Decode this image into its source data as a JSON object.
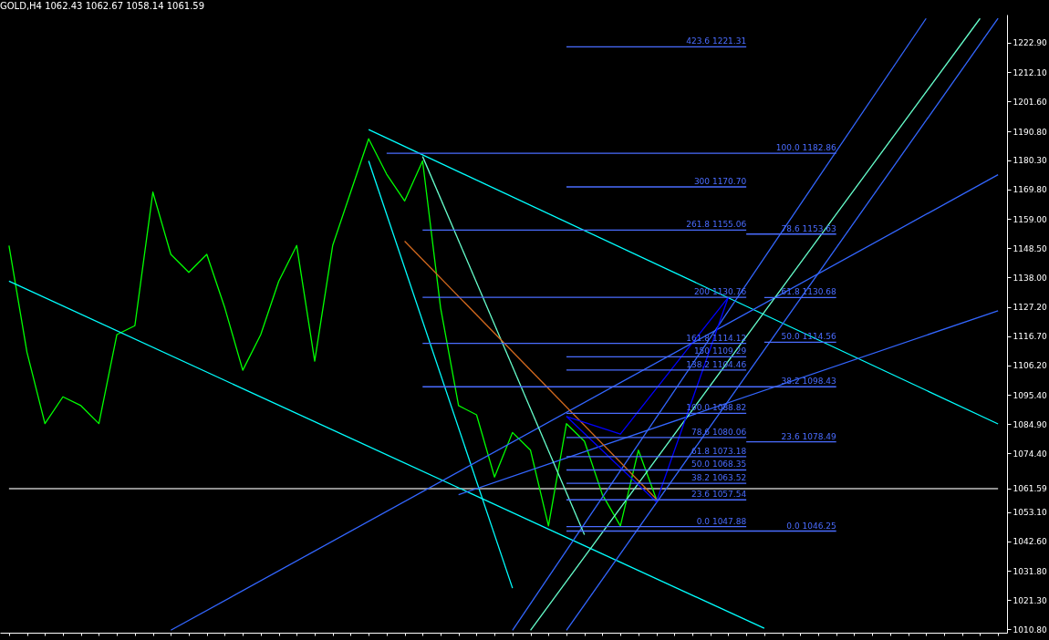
{
  "chart_data": {
    "type": "line",
    "title": "GOLD,H4  1062.43 1062.67 1058.14 1061.59",
    "categories": [
      null,
      null,
      null,
      null,
      null,
      null,
      null,
      null,
      null,
      null,
      null,
      null,
      null,
      null,
      null,
      null,
      null,
      null,
      null,
      null,
      null,
      null,
      null,
      null,
      null,
      null,
      null,
      null,
      null,
      null,
      null,
      null,
      null,
      null,
      null,
      null,
      null,
      null,
      null,
      null,
      null,
      null,
      null,
      null,
      null,
      null,
      null,
      null,
      null,
      null,
      null,
      null,
      null,
      null,
      null,
      null
    ],
    "ylim": [
      1009.5,
      1233
    ],
    "yticks": [
      {
        "value": 1010.8,
        "label": "1010.80"
      },
      {
        "value": 1021.3,
        "label": "1021.30"
      },
      {
        "value": 1031.8,
        "label": "1031.80"
      },
      {
        "value": 1042.6,
        "label": "1042.60"
      },
      {
        "value": 1053.1,
        "label": "1053.10"
      },
      {
        "value": 1061.59,
        "label": "1061.59"
      },
      {
        "value": 1074.4,
        "label": "1074.40"
      },
      {
        "value": 1084.9,
        "label": "1084.90"
      },
      {
        "value": 1095.4,
        "label": "1095.40"
      },
      {
        "value": 1106.2,
        "label": "1106.20"
      },
      {
        "value": 1116.7,
        "label": "1116.70"
      },
      {
        "value": 1127.2,
        "label": "1127.20"
      },
      {
        "value": 1138.0,
        "label": "1138.00"
      },
      {
        "value": 1148.5,
        "label": "1148.50"
      },
      {
        "value": 1159.0,
        "label": "1159.00"
      },
      {
        "value": 1169.8,
        "label": "1169.80"
      },
      {
        "value": 1180.3,
        "label": "1180.30"
      },
      {
        "value": 1190.8,
        "label": "1190.80"
      },
      {
        "value": 1201.6,
        "label": "1201.60"
      },
      {
        "value": 1212.1,
        "label": "1212.10"
      },
      {
        "value": 1222.9,
        "label": "1222.90"
      }
    ],
    "tick_labels": "y",
    "series": [
      {
        "color": "#c0c0c0",
        "values": [
          1061.59,
          1061.59,
          1061.59,
          1061.59,
          1061.59,
          1061.59,
          1061.59,
          1061.59,
          1061.59,
          1061.59,
          1061.59,
          1061.59,
          1061.59,
          1061.59,
          1061.59,
          1061.59,
          1061.59,
          1061.59,
          1061.59,
          1061.59,
          1061.59,
          1061.59,
          1061.59,
          1061.59,
          1061.59,
          1061.59,
          1061.59,
          1061.59,
          1061.59,
          1061.59,
          1061.59,
          1061.59,
          1061.59,
          1061.59,
          1061.59,
          1061.59,
          1061.59,
          1061.59,
          1061.59,
          1061.59,
          1061.59,
          1061.59,
          1061.59,
          1061.59,
          1061.59,
          1061.59,
          1061.59,
          1061.59,
          1061.59,
          1061.59,
          1061.59,
          1061.59,
          1061.59,
          1061.59,
          1061.59,
          1061.59
        ]
      },
      {
        "color": "#00ffff",
        "values": [
          null,
          null,
          null,
          null,
          null,
          null,
          null,
          null,
          null,
          null,
          null,
          null,
          null,
          null,
          null,
          null,
          null,
          null,
          null,
          null,
          1191.4,
          null,
          null,
          null,
          null,
          null,
          null,
          null,
          null,
          null,
          null,
          null,
          null,
          null,
          null,
          null,
          null,
          null,
          null,
          null,
          null,
          null,
          null,
          null,
          null,
          null,
          null,
          null,
          null,
          null,
          null,
          null,
          null,
          null,
          null,
          1085.0
        ]
      },
      {
        "color": "#00ff00",
        "values": [
          1149.5,
          1110.9,
          1085.1,
          1094.8,
          1091.6,
          1085.1,
          1117.3,
          1120.5,
          1168.8,
          1146.3,
          1139.8,
          1146.3,
          1127.0,
          1104.4,
          1117.3,
          1136.6,
          1149.5,
          1107.7,
          1149.5,
          1168.8,
          1188.1,
          1175.3,
          1165.6,
          1180.1,
          1127.0,
          1091.6,
          1088.3,
          1065.8,
          1081.9,
          1075.5,
          1048.1,
          1085.1,
          1078.7,
          1059.4,
          1048.1,
          1075.5,
          1057.8,
          null,
          null,
          null,
          null,
          null,
          null,
          null,
          null,
          null,
          null,
          null,
          null,
          null,
          null,
          null,
          null,
          null,
          null,
          null
        ]
      },
      {
        "color": "#00ffff",
        "values": [
          1136.6,
          null,
          null,
          null,
          null,
          null,
          null,
          null,
          null,
          null,
          null,
          null,
          null,
          null,
          null,
          null,
          null,
          null,
          null,
          null,
          null,
          null,
          null,
          null,
          null,
          null,
          null,
          null,
          null,
          null,
          null,
          null,
          null,
          null,
          null,
          null,
          null,
          null,
          null,
          null,
          null,
          null,
          1011.1,
          null,
          null,
          null,
          null,
          null,
          null,
          null,
          null,
          null,
          null,
          null,
          null,
          null
        ]
      },
      {
        "color": "#00ffff",
        "values": [
          null,
          null,
          null,
          null,
          null,
          null,
          null,
          null,
          null,
          null,
          null,
          null,
          null,
          null,
          null,
          null,
          null,
          null,
          null,
          null,
          1180.1,
          null,
          null,
          null,
          null,
          null,
          null,
          null,
          1025.6,
          null,
          null,
          null,
          null,
          null,
          null,
          null,
          null,
          null,
          null,
          null,
          null,
          null,
          null,
          null,
          null,
          null,
          null,
          null,
          null,
          null,
          null,
          null,
          null,
          null,
          null,
          null
        ]
      },
      {
        "color": "#3366ff",
        "values": [
          null,
          null,
          null,
          null,
          null,
          null,
          null,
          null,
          null,
          1010.4,
          null,
          null,
          null,
          null,
          null,
          null,
          null,
          null,
          null,
          null,
          null,
          null,
          null,
          null,
          null,
          null,
          null,
          null,
          null,
          null,
          null,
          null,
          null,
          null,
          null,
          null,
          null,
          null,
          null,
          null,
          null,
          null,
          null,
          null,
          null,
          null,
          null,
          null,
          null,
          null,
          null,
          null,
          null,
          null,
          null,
          1175.1
        ]
      },
      {
        "color": "#3366ff",
        "values": [
          null,
          null,
          null,
          null,
          null,
          null,
          null,
          null,
          null,
          null,
          null,
          null,
          null,
          null,
          null,
          null,
          null,
          null,
          null,
          null,
          null,
          null,
          null,
          null,
          null,
          1059.4,
          null,
          null,
          null,
          null,
          null,
          null,
          null,
          null,
          null,
          null,
          null,
          null,
          null,
          null,
          null,
          null,
          null,
          null,
          null,
          null,
          null,
          null,
          null,
          null,
          null,
          null,
          null,
          null,
          null,
          1125.9
        ]
      },
      {
        "color": "#3366ff",
        "values": [
          null,
          null,
          null,
          null,
          null,
          null,
          null,
          null,
          null,
          null,
          null,
          null,
          null,
          null,
          null,
          null,
          null,
          null,
          null,
          null,
          null,
          null,
          null,
          null,
          null,
          null,
          null,
          null,
          1010.4,
          null,
          null,
          null,
          null,
          null,
          null,
          null,
          null,
          null,
          null,
          null,
          null,
          null,
          null,
          null,
          null,
          null,
          null,
          null,
          null,
          null,
          null,
          1231.6,
          null,
          null,
          null,
          null
        ]
      },
      {
        "color": "#3366ff",
        "values": [
          null,
          null,
          null,
          null,
          null,
          null,
          null,
          null,
          null,
          null,
          null,
          null,
          null,
          null,
          null,
          null,
          null,
          null,
          null,
          null,
          null,
          null,
          null,
          null,
          null,
          null,
          null,
          null,
          null,
          null,
          null,
          1010.4,
          null,
          null,
          null,
          null,
          null,
          null,
          null,
          null,
          null,
          null,
          null,
          null,
          null,
          null,
          null,
          null,
          null,
          null,
          null,
          null,
          null,
          null,
          null,
          1231.6
        ]
      },
      {
        "color": "#66ffcc",
        "values": [
          null,
          null,
          null,
          null,
          null,
          null,
          null,
          null,
          null,
          null,
          null,
          null,
          null,
          null,
          null,
          null,
          null,
          null,
          null,
          null,
          null,
          null,
          null,
          null,
          null,
          null,
          null,
          null,
          null,
          1010.4,
          null,
          null,
          null,
          null,
          null,
          null,
          null,
          null,
          null,
          null,
          null,
          null,
          null,
          null,
          null,
          null,
          null,
          null,
          null,
          null,
          null,
          null,
          null,
          null,
          1231.6,
          null
        ]
      },
      {
        "color": "#66ffcc",
        "values": [
          null,
          null,
          null,
          null,
          null,
          null,
          null,
          null,
          null,
          null,
          null,
          null,
          null,
          null,
          null,
          null,
          null,
          null,
          null,
          null,
          null,
          null,
          null,
          1181.7,
          null,
          null,
          null,
          null,
          null,
          null,
          null,
          null,
          1044.9,
          null,
          null,
          null,
          null,
          null,
          null,
          null,
          null,
          null,
          null,
          null,
          null,
          null,
          null,
          null,
          null,
          null,
          null,
          null,
          null,
          null,
          null,
          null
        ]
      },
      {
        "color": "#d2691e",
        "values": [
          null,
          null,
          null,
          null,
          null,
          null,
          null,
          null,
          null,
          null,
          null,
          null,
          null,
          null,
          null,
          null,
          null,
          null,
          null,
          null,
          null,
          null,
          1151.1,
          null,
          null,
          null,
          null,
          null,
          null,
          null,
          null,
          null,
          null,
          null,
          null,
          null,
          1057.8,
          null,
          null,
          null,
          null,
          null,
          null,
          null,
          null,
          null,
          null,
          null,
          null,
          null,
          null,
          null,
          null,
          null,
          null,
          null
        ]
      },
      {
        "color": "#0000ff",
        "values": [
          null,
          null,
          null,
          null,
          null,
          null,
          null,
          null,
          null,
          null,
          null,
          null,
          null,
          null,
          null,
          null,
          null,
          null,
          null,
          null,
          null,
          null,
          null,
          null,
          null,
          null,
          null,
          null,
          null,
          null,
          null,
          1087.7,
          null,
          null,
          1081.3,
          null,
          null,
          null,
          null,
          null,
          1130.8,
          null,
          null,
          null,
          null,
          null,
          null,
          null,
          null,
          null,
          null,
          null,
          null,
          null,
          null,
          null
        ]
      },
      {
        "color": "#0000ff",
        "values": [
          null,
          null,
          null,
          null,
          null,
          null,
          null,
          null,
          null,
          null,
          null,
          null,
          null,
          null,
          null,
          null,
          null,
          null,
          null,
          null,
          null,
          null,
          null,
          null,
          null,
          null,
          null,
          null,
          null,
          null,
          null,
          1087.7,
          null,
          null,
          null,
          null,
          1056.8,
          null,
          null,
          null,
          1130.8,
          null,
          null,
          null,
          null,
          null,
          null,
          null,
          null,
          null,
          null,
          null,
          null,
          null,
          null,
          null
        ]
      },
      {
        "name": "423.6 1221.31",
        "color": "#4a6cff",
        "values": [
          null,
          null,
          null,
          null,
          null,
          null,
          null,
          null,
          null,
          null,
          null,
          null,
          null,
          null,
          null,
          null,
          null,
          null,
          null,
          null,
          null,
          null,
          null,
          null,
          null,
          null,
          null,
          null,
          null,
          null,
          null,
          1221.31,
          null,
          null,
          null,
          null,
          null,
          null,
          null,
          null,
          null,
          1221.31,
          null,
          null,
          null,
          null,
          null,
          null,
          null,
          null,
          null,
          null,
          null,
          null,
          null,
          null
        ]
      },
      {
        "name": "300 1170.70",
        "color": "#4a6cff",
        "values": [
          null,
          null,
          null,
          null,
          null,
          null,
          null,
          null,
          null,
          null,
          null,
          null,
          null,
          null,
          null,
          null,
          null,
          null,
          null,
          null,
          null,
          null,
          null,
          null,
          null,
          null,
          null,
          null,
          null,
          null,
          null,
          1170.7,
          null,
          null,
          null,
          null,
          null,
          null,
          null,
          null,
          null,
          1170.7,
          null,
          null,
          null,
          null,
          null,
          null,
          null,
          null,
          null,
          null,
          null,
          null,
          null,
          null
        ]
      },
      {
        "name": "261.8 1155.06",
        "color": "#4a6cff",
        "values": [
          null,
          null,
          null,
          null,
          null,
          null,
          null,
          null,
          null,
          null,
          null,
          null,
          null,
          null,
          null,
          null,
          null,
          null,
          null,
          null,
          null,
          null,
          null,
          1155.06,
          null,
          null,
          null,
          null,
          null,
          null,
          null,
          null,
          null,
          null,
          null,
          null,
          null,
          null,
          null,
          null,
          null,
          1155.06,
          null,
          null,
          null,
          null,
          null,
          null,
          null,
          null,
          null,
          null,
          null,
          null,
          null,
          null
        ]
      },
      {
        "name": "200 1130.76",
        "color": "#4a6cff",
        "values": [
          null,
          null,
          null,
          null,
          null,
          null,
          null,
          null,
          null,
          null,
          null,
          null,
          null,
          null,
          null,
          null,
          null,
          null,
          null,
          null,
          null,
          null,
          null,
          1130.76,
          null,
          null,
          null,
          null,
          null,
          null,
          null,
          null,
          null,
          null,
          null,
          null,
          null,
          null,
          null,
          null,
          null,
          1130.76,
          null,
          null,
          null,
          null,
          null,
          null,
          null,
          null,
          null,
          null,
          null,
          null,
          null,
          null
        ]
      },
      {
        "name": "161.8 1114.12",
        "color": "#4a6cff",
        "values": [
          null,
          null,
          null,
          null,
          null,
          null,
          null,
          null,
          null,
          null,
          null,
          null,
          null,
          null,
          null,
          null,
          null,
          null,
          null,
          null,
          null,
          null,
          null,
          1114.12,
          null,
          null,
          null,
          null,
          null,
          null,
          null,
          null,
          null,
          null,
          null,
          null,
          null,
          null,
          null,
          null,
          null,
          1114.12,
          null,
          null,
          null,
          null,
          null,
          null,
          null,
          null,
          null,
          null,
          null,
          null,
          null,
          null
        ]
      },
      {
        "name": "150 1109.29",
        "color": "#4a6cff",
        "values": [
          null,
          null,
          null,
          null,
          null,
          null,
          null,
          null,
          null,
          null,
          null,
          null,
          null,
          null,
          null,
          null,
          null,
          null,
          null,
          null,
          null,
          null,
          null,
          null,
          null,
          null,
          null,
          null,
          null,
          null,
          null,
          1109.29,
          null,
          null,
          null,
          null,
          null,
          null,
          null,
          null,
          null,
          1109.29,
          null,
          null,
          null,
          null,
          null,
          null,
          null,
          null,
          null,
          null,
          null,
          null,
          null,
          null
        ]
      },
      {
        "name": "138.2 1104.46",
        "color": "#4a6cff",
        "values": [
          null,
          null,
          null,
          null,
          null,
          null,
          null,
          null,
          null,
          null,
          null,
          null,
          null,
          null,
          null,
          null,
          null,
          null,
          null,
          null,
          null,
          null,
          null,
          null,
          null,
          null,
          null,
          null,
          null,
          null,
          null,
          1104.46,
          null,
          null,
          null,
          null,
          null,
          null,
          null,
          null,
          null,
          1104.46,
          null,
          null,
          null,
          null,
          null,
          null,
          null,
          null,
          null,
          null,
          null,
          null,
          null,
          null
        ]
      },
      {
        "name": "100.0 1088.82",
        "color": "#4a6cff",
        "values": [
          null,
          null,
          null,
          null,
          null,
          null,
          null,
          null,
          null,
          null,
          null,
          null,
          null,
          null,
          null,
          null,
          null,
          null,
          null,
          null,
          null,
          null,
          null,
          null,
          null,
          null,
          null,
          null,
          null,
          null,
          null,
          1088.82,
          null,
          null,
          null,
          null,
          null,
          null,
          null,
          null,
          null,
          1088.82,
          null,
          null,
          null,
          null,
          null,
          null,
          null,
          null,
          null,
          null,
          null,
          null,
          null,
          null
        ]
      },
      {
        "name": "78.6 1080.06",
        "color": "#4a6cff",
        "values": [
          null,
          null,
          null,
          null,
          null,
          null,
          null,
          null,
          null,
          null,
          null,
          null,
          null,
          null,
          null,
          null,
          null,
          null,
          null,
          null,
          null,
          null,
          null,
          null,
          null,
          null,
          null,
          null,
          null,
          null,
          null,
          1080.06,
          null,
          null,
          null,
          null,
          null,
          null,
          null,
          null,
          null,
          1080.06,
          null,
          null,
          null,
          null,
          null,
          null,
          null,
          null,
          null,
          null,
          null,
          null,
          null,
          null
        ]
      },
      {
        "name": "61.8 1073.18",
        "color": "#4a6cff",
        "values": [
          null,
          null,
          null,
          null,
          null,
          null,
          null,
          null,
          null,
          null,
          null,
          null,
          null,
          null,
          null,
          null,
          null,
          null,
          null,
          null,
          null,
          null,
          null,
          null,
          null,
          null,
          null,
          null,
          null,
          null,
          null,
          1073.18,
          null,
          null,
          null,
          null,
          null,
          null,
          null,
          null,
          null,
          1073.18,
          null,
          null,
          null,
          null,
          null,
          null,
          null,
          null,
          null,
          null,
          null,
          null,
          null,
          null
        ]
      },
      {
        "name": "50.0 1068.35",
        "color": "#4a6cff",
        "values": [
          null,
          null,
          null,
          null,
          null,
          null,
          null,
          null,
          null,
          null,
          null,
          null,
          null,
          null,
          null,
          null,
          null,
          null,
          null,
          null,
          null,
          null,
          null,
          null,
          null,
          null,
          null,
          null,
          null,
          null,
          null,
          1068.35,
          null,
          null,
          null,
          null,
          null,
          null,
          null,
          null,
          null,
          1068.35,
          null,
          null,
          null,
          null,
          null,
          null,
          null,
          null,
          null,
          null,
          null,
          null,
          null,
          null
        ]
      },
      {
        "name": "38.2 1063.52",
        "color": "#4a6cff",
        "values": [
          null,
          null,
          null,
          null,
          null,
          null,
          null,
          null,
          null,
          null,
          null,
          null,
          null,
          null,
          null,
          null,
          null,
          null,
          null,
          null,
          null,
          null,
          null,
          null,
          null,
          null,
          null,
          null,
          null,
          null,
          null,
          1063.52,
          null,
          null,
          null,
          null,
          null,
          null,
          null,
          null,
          null,
          1063.52,
          null,
          null,
          null,
          null,
          null,
          null,
          null,
          null,
          null,
          null,
          null,
          null,
          null,
          null
        ]
      },
      {
        "name": "23.6 1057.54",
        "color": "#4a6cff",
        "values": [
          null,
          null,
          null,
          null,
          null,
          null,
          null,
          null,
          null,
          null,
          null,
          null,
          null,
          null,
          null,
          null,
          null,
          null,
          null,
          null,
          null,
          null,
          null,
          null,
          null,
          null,
          null,
          null,
          null,
          null,
          null,
          1057.54,
          null,
          null,
          null,
          null,
          null,
          null,
          null,
          null,
          null,
          1057.54,
          null,
          null,
          null,
          null,
          null,
          null,
          null,
          null,
          null,
          null,
          null,
          null,
          null,
          null
        ]
      },
      {
        "name": "0.0 1047.88",
        "color": "#4a6cff",
        "values": [
          null,
          null,
          null,
          null,
          null,
          null,
          null,
          null,
          null,
          null,
          null,
          null,
          null,
          null,
          null,
          null,
          null,
          null,
          null,
          null,
          null,
          null,
          null,
          null,
          null,
          null,
          null,
          null,
          null,
          null,
          null,
          1047.88,
          null,
          null,
          null,
          null,
          null,
          null,
          null,
          null,
          null,
          1047.88,
          null,
          null,
          null,
          null,
          null,
          null,
          null,
          null,
          null,
          null,
          null,
          null,
          null,
          null
        ]
      },
      {
        "name": "100.0 1182.86",
        "color": "#4a6cff",
        "values": [
          null,
          null,
          null,
          null,
          null,
          null,
          null,
          null,
          null,
          null,
          null,
          null,
          null,
          null,
          null,
          null,
          null,
          null,
          null,
          null,
          null,
          1182.86,
          null,
          null,
          null,
          null,
          null,
          null,
          null,
          null,
          null,
          null,
          null,
          null,
          null,
          null,
          null,
          null,
          null,
          null,
          null,
          null,
          null,
          null,
          null,
          null,
          1182.86,
          null,
          null,
          null,
          null,
          null,
          null,
          null,
          null,
          null
        ]
      },
      {
        "name": "78.6 1153.63",
        "color": "#4a6cff",
        "values": [
          null,
          null,
          null,
          null,
          null,
          null,
          null,
          null,
          null,
          null,
          null,
          null,
          null,
          null,
          null,
          null,
          null,
          null,
          null,
          null,
          null,
          null,
          null,
          null,
          null,
          null,
          null,
          null,
          null,
          null,
          null,
          null,
          null,
          null,
          null,
          null,
          null,
          null,
          null,
          null,
          null,
          1153.63,
          null,
          null,
          null,
          null,
          1153.63,
          null,
          null,
          null,
          null,
          null,
          null,
          null,
          null,
          null
        ]
      },
      {
        "name": "61.8 1130.68",
        "color": "#4a6cff",
        "values": [
          null,
          null,
          null,
          null,
          null,
          null,
          null,
          null,
          null,
          null,
          null,
          null,
          null,
          null,
          null,
          null,
          null,
          null,
          null,
          null,
          null,
          null,
          null,
          null,
          null,
          null,
          null,
          null,
          null,
          null,
          null,
          null,
          null,
          null,
          null,
          null,
          null,
          null,
          null,
          null,
          null,
          null,
          1130.68,
          null,
          null,
          null,
          1130.68,
          null,
          null,
          null,
          null,
          null,
          null,
          null,
          null,
          null
        ]
      },
      {
        "name": "50.0 1114.56",
        "color": "#4a6cff",
        "values": [
          null,
          null,
          null,
          null,
          null,
          null,
          null,
          null,
          null,
          null,
          null,
          null,
          null,
          null,
          null,
          null,
          null,
          null,
          null,
          null,
          null,
          null,
          null,
          null,
          null,
          null,
          null,
          null,
          null,
          null,
          null,
          null,
          null,
          null,
          null,
          null,
          null,
          null,
          null,
          null,
          null,
          null,
          1114.56,
          null,
          null,
          null,
          1114.56,
          null,
          null,
          null,
          null,
          null,
          null,
          null,
          null,
          null
        ]
      },
      {
        "name": "38.2 1098.43",
        "color": "#4a6cff",
        "values": [
          null,
          null,
          null,
          null,
          null,
          null,
          null,
          null,
          null,
          null,
          null,
          null,
          null,
          null,
          null,
          null,
          null,
          null,
          null,
          null,
          null,
          null,
          null,
          1098.43,
          null,
          null,
          null,
          null,
          null,
          null,
          null,
          null,
          null,
          null,
          null,
          null,
          null,
          null,
          null,
          null,
          null,
          null,
          null,
          null,
          null,
          null,
          1098.43,
          null,
          null,
          null,
          null,
          null,
          null,
          null,
          null,
          null
        ]
      },
      {
        "name": "23.6 1078.49",
        "color": "#4a6cff",
        "values": [
          null,
          null,
          null,
          null,
          null,
          null,
          null,
          null,
          null,
          null,
          null,
          null,
          null,
          null,
          null,
          null,
          null,
          null,
          null,
          null,
          null,
          null,
          null,
          null,
          null,
          null,
          null,
          null,
          null,
          null,
          null,
          null,
          null,
          null,
          null,
          null,
          null,
          null,
          null,
          null,
          null,
          1078.49,
          null,
          null,
          null,
          null,
          1078.49,
          null,
          null,
          null,
          null,
          null,
          null,
          null,
          null,
          null
        ]
      },
      {
        "name": "0.0 1046.25",
        "color": "#4a6cff",
        "values": [
          null,
          null,
          null,
          null,
          null,
          null,
          null,
          null,
          null,
          null,
          null,
          null,
          null,
          null,
          null,
          null,
          null,
          null,
          null,
          null,
          null,
          null,
          null,
          null,
          null,
          null,
          null,
          null,
          null,
          null,
          null,
          1046.25,
          null,
          null,
          null,
          null,
          null,
          null,
          null,
          null,
          null,
          null,
          null,
          null,
          null,
          null,
          1046.25,
          null,
          null,
          null,
          null,
          null,
          null,
          null,
          null,
          null
        ]
      }
    ]
  }
}
